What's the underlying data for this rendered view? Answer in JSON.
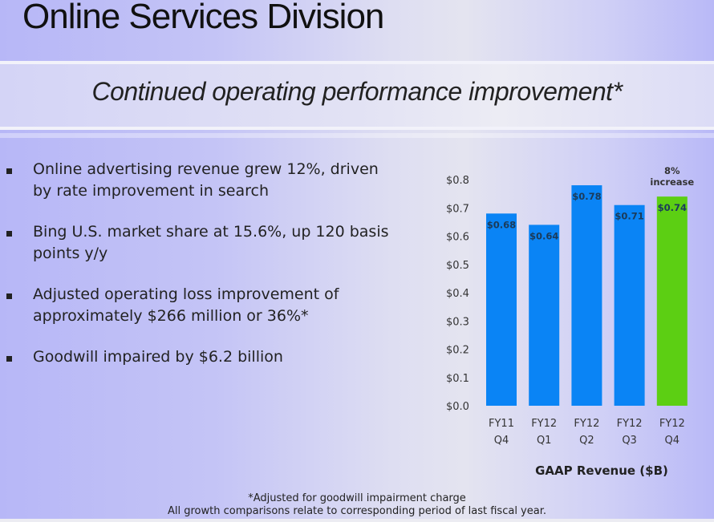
{
  "slide": {
    "title": "Online Services Division",
    "subtitle": "Continued operating performance improvement*"
  },
  "bullets": [
    {
      "text": "Online advertising revenue grew 12%, driven by rate improvement in search"
    },
    {
      "text": "Bing U.S. market share at 15.6%, up 120 basis points y/y"
    },
    {
      "text": "Adjusted operating loss improvement of approximately $266 million or 36%*"
    },
    {
      "text": "Goodwill impaired by $6.2 billion"
    }
  ],
  "footnotes": {
    "line1": "*Adjusted for goodwill impairment charge",
    "line2": "All growth comparisons relate to corresponding period of last fiscal year."
  },
  "chart_data": {
    "type": "bar",
    "title": "",
    "xlabel": "GAAP Revenue ($B)",
    "ylabel": "",
    "categories": [
      [
        "FY11",
        "Q4"
      ],
      [
        "FY12",
        "Q1"
      ],
      [
        "FY12",
        "Q2"
      ],
      [
        "FY12",
        "Q3"
      ],
      [
        "FY12",
        "Q4"
      ]
    ],
    "values": [
      0.68,
      0.64,
      0.78,
      0.71,
      0.74
    ],
    "data_labels": [
      "$0.68",
      "$0.64",
      "$0.78",
      "$0.71",
      "$0.74"
    ],
    "bar_colors": [
      "#0a84f5",
      "#0a84f5",
      "#0a84f5",
      "#0a84f5",
      "#5ccf13"
    ],
    "ylim": [
      0,
      0.8
    ],
    "yticks": [
      0.0,
      0.1,
      0.2,
      0.3,
      0.4,
      0.5,
      0.6,
      0.7,
      0.8
    ],
    "ytick_labels": [
      "$0.0",
      "$0.1",
      "$0.2",
      "$0.3",
      "$0.4",
      "$0.5",
      "$0.6",
      "$0.7",
      "$0.8"
    ],
    "grid": false,
    "annotations": [
      {
        "category_index": 4,
        "lines": [
          "8%",
          "increase"
        ]
      }
    ]
  }
}
